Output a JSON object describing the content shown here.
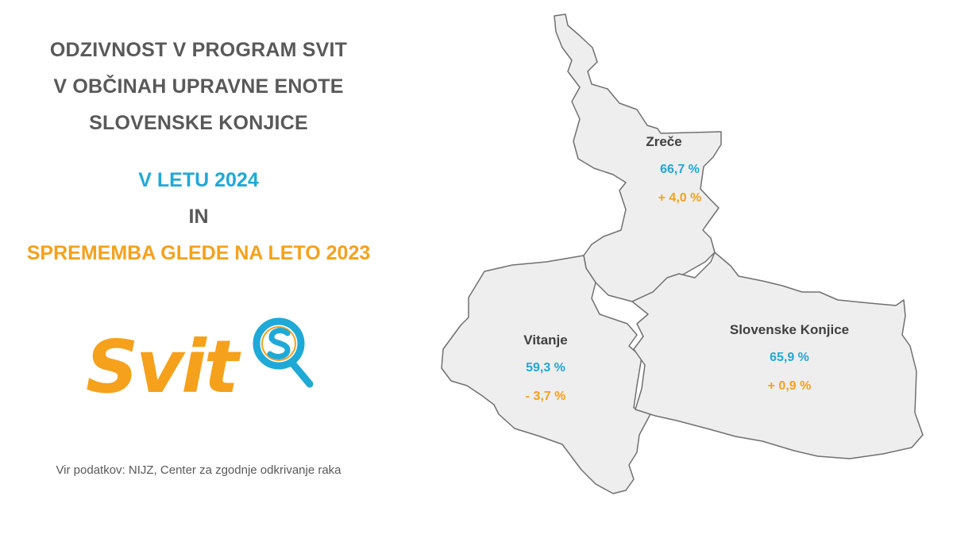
{
  "title": {
    "line1": "ODZIVNOST V PROGRAM SVIT",
    "line2": "V OBČINAH UPRAVNE ENOTE",
    "line3": "SLOVENSKE KONJICE"
  },
  "subtitle": {
    "year": "V LETU 2024",
    "connector": "IN",
    "change": "SPREMEMBA GLEDE NA LETO 2023"
  },
  "logo": {
    "text": "Svit",
    "icon": "magnifier-s-icon"
  },
  "source": "Vir podatkov: NIJZ, Center za zgodnje odkrivanje raka",
  "colors": {
    "value": "#1fa9d6",
    "change": "#f5a11c",
    "text": "#595959",
    "region_fill": "#eeeeee"
  },
  "municipalities": [
    {
      "name": "Zreče",
      "value": "66,7 %",
      "change": "+ 4,0 %"
    },
    {
      "name": "Vitanje",
      "value": "59,3 %",
      "change": "- 3,7 %"
    },
    {
      "name": "Slovenske Konjice",
      "value": "65,9 %",
      "change": "+ 0,9 %"
    }
  ]
}
